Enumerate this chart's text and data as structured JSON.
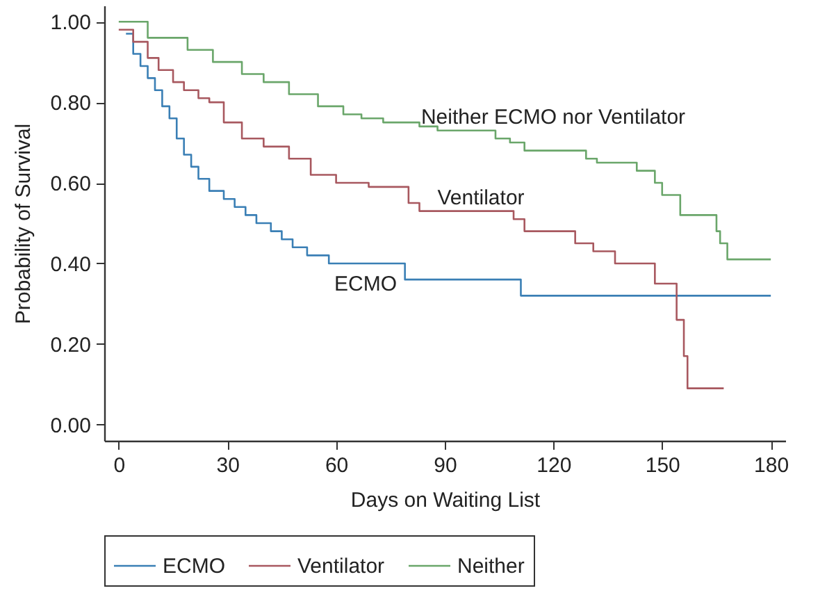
{
  "chart_data": {
    "type": "step",
    "xlabel": "Days on Waiting List",
    "ylabel": "Probability of Survival",
    "xlim": [
      -4,
      184
    ],
    "ylim": [
      -0.04,
      1.04
    ],
    "xticks": [
      0,
      30,
      60,
      90,
      120,
      150,
      180
    ],
    "yticks": [
      {
        "value": 0,
        "label": "0.00"
      },
      {
        "value": 0.2,
        "label": "0.20"
      },
      {
        "value": 0.4,
        "label": "0.40"
      },
      {
        "value": 0.6,
        "label": "0.60"
      },
      {
        "value": 0.8,
        "label": "0.80"
      },
      {
        "value": 1,
        "label": "1.00"
      }
    ],
    "legend": "bottom",
    "grid": false,
    "series": [
      {
        "name": "ECMO",
        "color": "#3a7fb5",
        "x": [
          2,
          4,
          6,
          8,
          10,
          12,
          14,
          16,
          18,
          20,
          22,
          25,
          29,
          32,
          35,
          38,
          42,
          45,
          48,
          52,
          58,
          79,
          111,
          180
        ],
        "values": [
          0.97,
          0.92,
          0.89,
          0.86,
          0.83,
          0.79,
          0.76,
          0.71,
          0.67,
          0.64,
          0.61,
          0.58,
          0.56,
          0.54,
          0.52,
          0.5,
          0.48,
          0.46,
          0.44,
          0.42,
          0.4,
          0.36,
          0.32,
          0.32
        ]
      },
      {
        "name": "Ventilator",
        "color": "#a8585f",
        "x": [
          0,
          4,
          8,
          11,
          15,
          18,
          22,
          25,
          29,
          34,
          40,
          47,
          53,
          60,
          69,
          80,
          83,
          85,
          109,
          112,
          126,
          131,
          137,
          148,
          154,
          156,
          157,
          167
        ],
        "values": [
          0.98,
          0.95,
          0.91,
          0.88,
          0.85,
          0.83,
          0.81,
          0.8,
          0.75,
          0.71,
          0.69,
          0.66,
          0.62,
          0.6,
          0.59,
          0.55,
          0.53,
          0.53,
          0.51,
          0.48,
          0.45,
          0.43,
          0.4,
          0.35,
          0.26,
          0.17,
          0.09,
          0.09
        ]
      },
      {
        "name": "Neither",
        "color": "#6aa66a",
        "x": [
          0,
          8,
          19,
          26,
          34,
          40,
          47,
          55,
          62,
          67,
          73,
          83,
          88,
          104,
          108,
          112,
          129,
          132,
          143,
          148,
          150,
          155,
          165,
          166,
          168,
          180
        ],
        "values": [
          1,
          0.96,
          0.93,
          0.9,
          0.87,
          0.85,
          0.82,
          0.79,
          0.77,
          0.76,
          0.75,
          0.74,
          0.73,
          0.71,
          0.7,
          0.68,
          0.66,
          0.65,
          0.63,
          0.6,
          0.57,
          0.52,
          0.48,
          0.45,
          0.41,
          0.41
        ]
      }
    ],
    "annotations": [
      "ECMO",
      "Ventilator",
      "Neither ECMO nor Ventilator"
    ]
  }
}
